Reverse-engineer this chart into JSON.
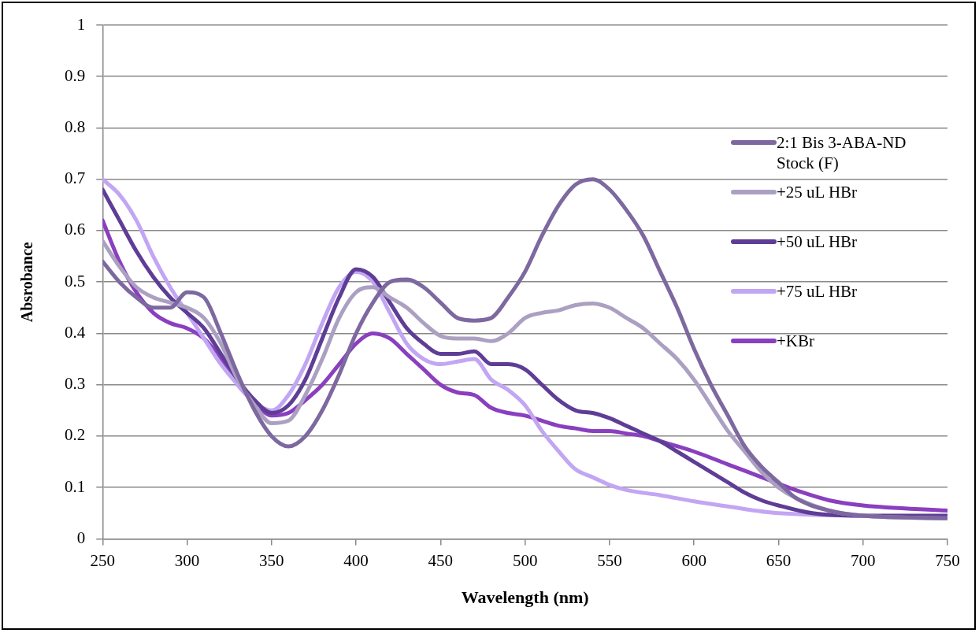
{
  "chart_data": {
    "type": "line",
    "xlabel": "Wavelength (nm)",
    "ylabel": "Absrobance",
    "xlim": [
      250,
      750
    ],
    "xticks": [
      250,
      300,
      350,
      400,
      450,
      500,
      550,
      600,
      650,
      700,
      750
    ],
    "ylim": [
      0,
      1
    ],
    "yticks": [
      0,
      0.1,
      0.2,
      0.3,
      0.4,
      0.5,
      0.6,
      0.7,
      0.8,
      0.9,
      1
    ],
    "grid": "y",
    "legend": "top right",
    "marker": "none",
    "line_style": "solid",
    "series": [
      {
        "name": "2:1 Bis 3-ABA-ND Stock (F)",
        "color": "#7d68a0",
        "x": [
          250,
          260,
          270,
          280,
          290,
          300,
          310,
          320,
          330,
          340,
          350,
          360,
          370,
          380,
          390,
          400,
          410,
          420,
          430,
          440,
          450,
          460,
          470,
          480,
          490,
          500,
          510,
          520,
          530,
          540,
          550,
          560,
          570,
          580,
          590,
          600,
          610,
          620,
          630,
          640,
          650,
          660,
          680,
          700,
          750
        ],
        "values": [
          0.54,
          0.5,
          0.47,
          0.45,
          0.45,
          0.48,
          0.47,
          0.4,
          0.32,
          0.25,
          0.2,
          0.18,
          0.2,
          0.25,
          0.32,
          0.4,
          0.46,
          0.5,
          0.505,
          0.49,
          0.46,
          0.43,
          0.425,
          0.43,
          0.47,
          0.52,
          0.59,
          0.65,
          0.69,
          0.7,
          0.68,
          0.64,
          0.59,
          0.52,
          0.45,
          0.37,
          0.3,
          0.24,
          0.18,
          0.14,
          0.11,
          0.08,
          0.055,
          0.045,
          0.04
        ]
      },
      {
        "name": "+25 uL HBr",
        "color": "#aca0c2",
        "x": [
          250,
          260,
          270,
          280,
          290,
          300,
          310,
          320,
          330,
          340,
          350,
          360,
          370,
          380,
          390,
          400,
          410,
          420,
          430,
          440,
          450,
          460,
          470,
          480,
          490,
          500,
          510,
          520,
          530,
          540,
          550,
          560,
          570,
          580,
          590,
          600,
          610,
          620,
          630,
          640,
          650,
          660,
          680,
          700,
          750
        ],
        "values": [
          0.58,
          0.53,
          0.49,
          0.47,
          0.46,
          0.45,
          0.43,
          0.38,
          0.31,
          0.26,
          0.225,
          0.23,
          0.28,
          0.35,
          0.43,
          0.48,
          0.49,
          0.47,
          0.45,
          0.42,
          0.395,
          0.39,
          0.39,
          0.385,
          0.4,
          0.43,
          0.44,
          0.445,
          0.455,
          0.458,
          0.45,
          0.43,
          0.41,
          0.38,
          0.35,
          0.31,
          0.26,
          0.21,
          0.17,
          0.13,
          0.1,
          0.08,
          0.055,
          0.045,
          0.04
        ]
      },
      {
        "name": "+50 uL HBr",
        "color": "#5f3d96",
        "x": [
          250,
          260,
          270,
          280,
          290,
          300,
          310,
          320,
          330,
          340,
          350,
          360,
          370,
          380,
          390,
          400,
          410,
          420,
          430,
          440,
          450,
          460,
          470,
          480,
          490,
          500,
          510,
          520,
          530,
          540,
          550,
          560,
          570,
          580,
          590,
          600,
          610,
          620,
          630,
          640,
          650,
          670,
          700,
          750
        ],
        "values": [
          0.68,
          0.62,
          0.56,
          0.51,
          0.47,
          0.44,
          0.41,
          0.36,
          0.31,
          0.27,
          0.245,
          0.26,
          0.31,
          0.39,
          0.47,
          0.525,
          0.51,
          0.46,
          0.41,
          0.38,
          0.36,
          0.36,
          0.365,
          0.34,
          0.34,
          0.33,
          0.3,
          0.27,
          0.25,
          0.245,
          0.235,
          0.22,
          0.205,
          0.19,
          0.17,
          0.15,
          0.13,
          0.11,
          0.09,
          0.075,
          0.065,
          0.05,
          0.045,
          0.045
        ]
      },
      {
        "name": "+75 uL HBr",
        "color": "#c2a6f3",
        "x": [
          250,
          260,
          270,
          280,
          290,
          300,
          310,
          320,
          330,
          340,
          350,
          360,
          370,
          380,
          390,
          400,
          410,
          420,
          430,
          440,
          450,
          460,
          470,
          480,
          490,
          500,
          510,
          520,
          530,
          540,
          550,
          560,
          580,
          600,
          620,
          650,
          750
        ],
        "values": [
          0.7,
          0.67,
          0.62,
          0.55,
          0.49,
          0.44,
          0.39,
          0.34,
          0.3,
          0.265,
          0.25,
          0.28,
          0.34,
          0.42,
          0.49,
          0.52,
          0.5,
          0.44,
          0.38,
          0.35,
          0.34,
          0.345,
          0.35,
          0.31,
          0.29,
          0.26,
          0.21,
          0.17,
          0.135,
          0.12,
          0.105,
          0.095,
          0.085,
          0.073,
          0.063,
          0.05,
          0.043
        ]
      },
      {
        "name": "+KBr",
        "color": "#8a3fbf",
        "x": [
          250,
          260,
          270,
          280,
          290,
          300,
          310,
          320,
          330,
          340,
          350,
          360,
          370,
          380,
          390,
          400,
          410,
          420,
          430,
          440,
          450,
          460,
          470,
          480,
          490,
          500,
          510,
          520,
          530,
          540,
          550,
          560,
          570,
          580,
          600,
          620,
          640,
          660,
          680,
          700,
          750
        ],
        "values": [
          0.62,
          0.54,
          0.48,
          0.44,
          0.42,
          0.41,
          0.39,
          0.35,
          0.3,
          0.265,
          0.24,
          0.245,
          0.27,
          0.3,
          0.34,
          0.38,
          0.4,
          0.39,
          0.36,
          0.33,
          0.3,
          0.285,
          0.28,
          0.255,
          0.245,
          0.24,
          0.23,
          0.22,
          0.215,
          0.21,
          0.21,
          0.205,
          0.2,
          0.19,
          0.17,
          0.145,
          0.12,
          0.095,
          0.075,
          0.065,
          0.055
        ]
      }
    ]
  }
}
